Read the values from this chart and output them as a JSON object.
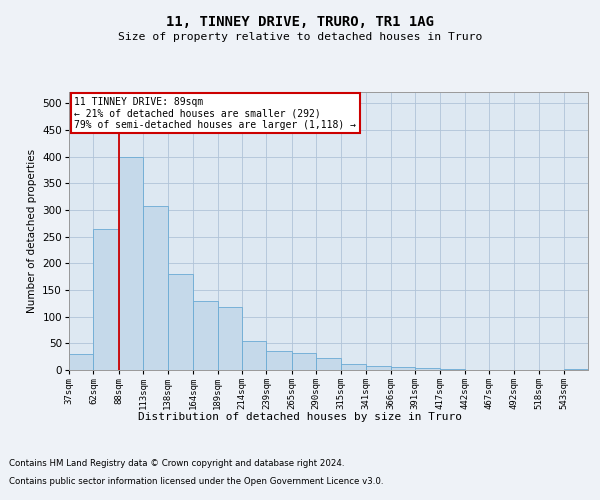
{
  "title": "11, TINNEY DRIVE, TRURO, TR1 1AG",
  "subtitle": "Size of property relative to detached houses in Truro",
  "xlabel": "Distribution of detached houses by size in Truro",
  "ylabel": "Number of detached properties",
  "footer_line1": "Contains HM Land Registry data © Crown copyright and database right 2024.",
  "footer_line2": "Contains public sector information licensed under the Open Government Licence v3.0.",
  "annotation_title": "11 TINNEY DRIVE: 89sqm",
  "annotation_line2": "← 21% of detached houses are smaller (292)",
  "annotation_line3": "79% of semi-detached houses are larger (1,118) →",
  "property_size": 89,
  "bar_color": "#c5d9ea",
  "bar_edge_color": "#6aaad4",
  "red_line_color": "#cc0000",
  "bg_color": "#eef2f7",
  "plot_bg_color": "#dde8f2",
  "grid_color": "#b8ccd e",
  "categories": [
    "37sqm",
    "62sqm",
    "88sqm",
    "113sqm",
    "138sqm",
    "164sqm",
    "189sqm",
    "214sqm",
    "239sqm",
    "265sqm",
    "290sqm",
    "315sqm",
    "341sqm",
    "366sqm",
    "391sqm",
    "417sqm",
    "442sqm",
    "467sqm",
    "492sqm",
    "518sqm",
    "543sqm"
  ],
  "bin_edges": [
    37,
    62,
    88,
    113,
    138,
    164,
    189,
    214,
    239,
    265,
    290,
    315,
    341,
    366,
    391,
    417,
    442,
    467,
    492,
    518,
    543,
    568
  ],
  "values": [
    30,
    265,
    400,
    308,
    180,
    130,
    118,
    55,
    35,
    32,
    22,
    12,
    8,
    5,
    3,
    1,
    0,
    0,
    0,
    0,
    1
  ],
  "ylim": [
    0,
    520
  ],
  "yticks": [
    0,
    50,
    100,
    150,
    200,
    250,
    300,
    350,
    400,
    450,
    500
  ]
}
